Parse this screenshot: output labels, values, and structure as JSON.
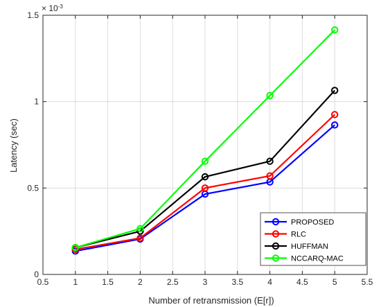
{
  "chart_data": {
    "type": "line",
    "xlabel": "Number of retransmission (E[r])",
    "ylabel": "Latency (sec)",
    "y_exponent_label": "× 10",
    "y_exponent_power": "-3",
    "xlim": [
      0.5,
      5.5
    ],
    "ylim": [
      0,
      1.5
    ],
    "xticks": [
      0.5,
      1,
      1.5,
      2,
      2.5,
      3,
      3.5,
      4,
      4.5,
      5,
      5.5
    ],
    "xtick_labels": [
      "0.5",
      "1",
      "1.5",
      "2",
      "2.5",
      "3",
      "3.5",
      "4",
      "4.5",
      "5",
      "5.5"
    ],
    "yticks": [
      0,
      0.5,
      1,
      1.5
    ],
    "ytick_labels": [
      "0",
      "0.5",
      "1",
      "1.5"
    ],
    "grid": true,
    "legend_position": "bottom-right",
    "x": [
      1,
      2,
      3,
      4,
      5
    ],
    "series": [
      {
        "name": "PROPOSED",
        "color": "#0000ff",
        "values": [
          0.135,
          0.205,
          0.465,
          0.535,
          0.865
        ]
      },
      {
        "name": "RLC",
        "color": "#ff0000",
        "values": [
          0.145,
          0.21,
          0.5,
          0.57,
          0.925
        ]
      },
      {
        "name": "HUFFMAN",
        "color": "#000000",
        "values": [
          0.155,
          0.25,
          0.565,
          0.655,
          1.065
        ]
      },
      {
        "name": "NCCARQ-MAC",
        "color": "#00ff00",
        "values": [
          0.155,
          0.265,
          0.655,
          1.035,
          1.415
        ]
      }
    ]
  }
}
